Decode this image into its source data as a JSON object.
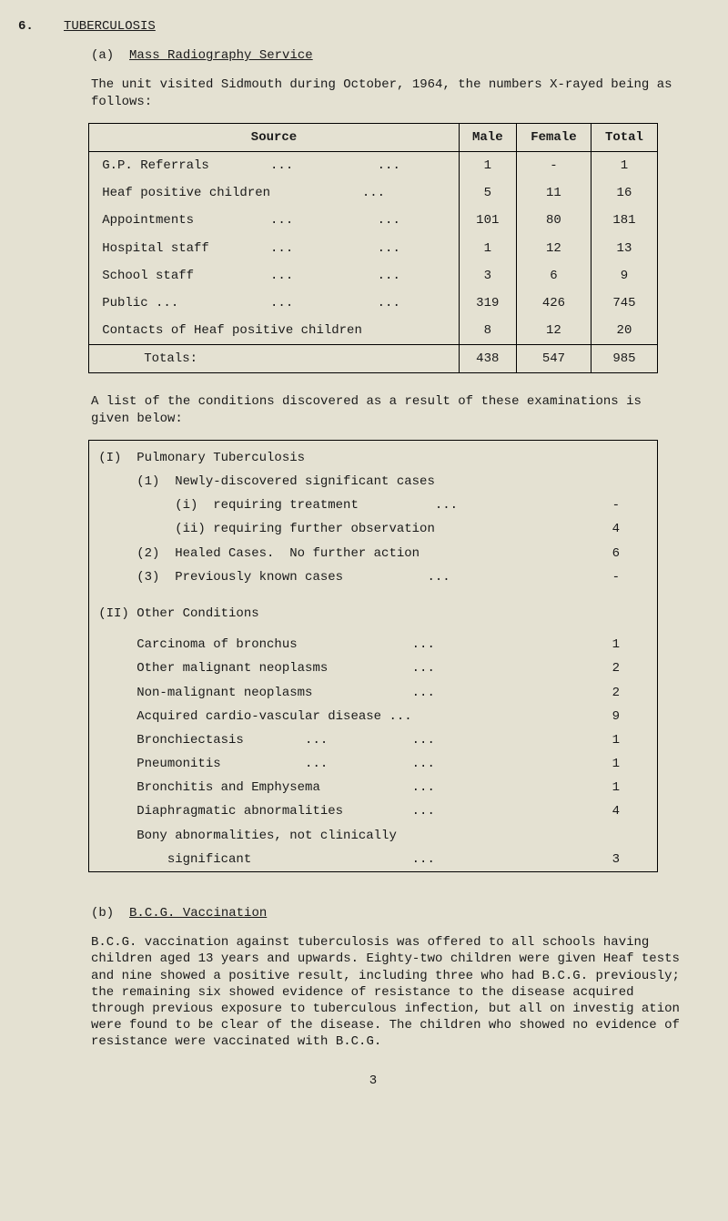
{
  "header": {
    "section_number": "6.",
    "title": "TUBERCULOSIS",
    "sub_a_marker": "(a)",
    "sub_a_title": "Mass Radiography Service",
    "sub_b_marker": "(b)",
    "sub_b_title": "B.C.G. Vaccination"
  },
  "paragraphs": {
    "intro_a": "The unit visited Sidmouth during October, 1964, the numbers X-rayed being as follows:",
    "list_intro": "A list of the conditions discovered as a result of these examinations is given below:",
    "bcg": "B.C.G. vaccination against tuberculosis was offered to all schools having children aged 13 years and upwards.  Eighty-two children were given Heaf tests and nine showed a positive result, including three who had B.C.G. previously; the remaining six showed evidence of resistance to the disease acquired through previous exposure to tuberculous infection, but all on investig ation were found to be clear of the disease. The children who showed no evidence of resistance were vaccinated with B.C.G."
  },
  "table1": {
    "headers": {
      "c1": "Source",
      "c2": "Male",
      "c3": "Female",
      "c4": "Total"
    },
    "rows": [
      {
        "label": "G.P. Referrals        ...           ...",
        "male": "1",
        "female": "-",
        "total": "1"
      },
      {
        "label": "Heaf positive children            ...",
        "male": "5",
        "female": "11",
        "total": "16"
      },
      {
        "label": "Appointments          ...           ...",
        "male": "101",
        "female": "80",
        "total": "181"
      },
      {
        "label": "Hospital staff        ...           ...",
        "male": "1",
        "female": "12",
        "total": "13"
      },
      {
        "label": "School staff          ...           ...",
        "male": "3",
        "female": "6",
        "total": "9"
      },
      {
        "label": "Public ...            ...           ...",
        "male": "319",
        "female": "426",
        "total": "745"
      },
      {
        "label": "Contacts of Heaf positive children",
        "male": "8",
        "female": "12",
        "total": "20"
      }
    ],
    "totals": {
      "label": "Totals:",
      "male": "438",
      "female": "547",
      "total": "985"
    }
  },
  "table2": {
    "groupI_title": "(I)  Pulmonary Tuberculosis",
    "groupI": [
      {
        "label": "     (1)  Newly-discovered significant cases",
        "val": ""
      },
      {
        "label": "          (i)  requiring treatment          ...",
        "val": "-"
      },
      {
        "label": "          (ii) requiring further observation",
        "val": "4"
      },
      {
        "label": "     (2)  Healed Cases.  No further action",
        "val": "6"
      },
      {
        "label": "     (3)  Previously known cases           ...",
        "val": "-"
      }
    ],
    "groupII_title": "(II) Other Conditions",
    "groupII": [
      {
        "label": "     Carcinoma of bronchus               ...",
        "val": "1"
      },
      {
        "label": "     Other malignant neoplasms           ...",
        "val": "2"
      },
      {
        "label": "     Non-malignant neoplasms             ...",
        "val": "2"
      },
      {
        "label": "     Acquired cardio-vascular disease ...",
        "val": "9"
      },
      {
        "label": "     Bronchiectasis        ...           ...",
        "val": "1"
      },
      {
        "label": "     Pneumonitis           ...           ...",
        "val": "1"
      },
      {
        "label": "     Bronchitis and Emphysema            ...",
        "val": "1"
      },
      {
        "label": "     Diaphragmatic abnormalities         ...",
        "val": "4"
      },
      {
        "label": "     Bony abnormalities, not clinically",
        "val": ""
      },
      {
        "label": "         significant                     ...",
        "val": "3"
      }
    ]
  },
  "page_number": "3"
}
